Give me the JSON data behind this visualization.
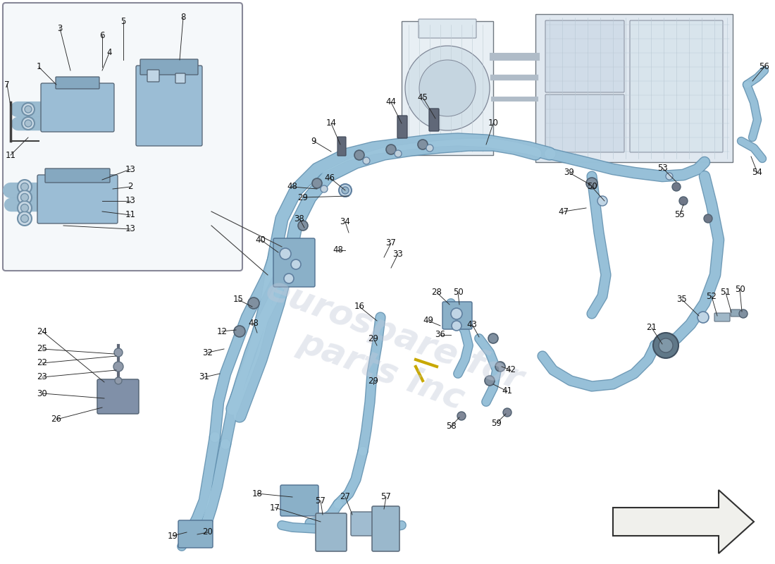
{
  "bg": "#ffffff",
  "pipe_color": "#8ab8d0",
  "pipe_dark": "#6898b8",
  "part_blue": "#90b8d0",
  "part_dark": "#607890",
  "inset_bg": "#f5f8fa",
  "inset_border": "#888898",
  "line_color": "#282828",
  "watermark_color": "#c0c8d8",
  "label_fs": 8.5,
  "arrow_fill": "#f0f0ec",
  "arrow_edge": "#303030"
}
